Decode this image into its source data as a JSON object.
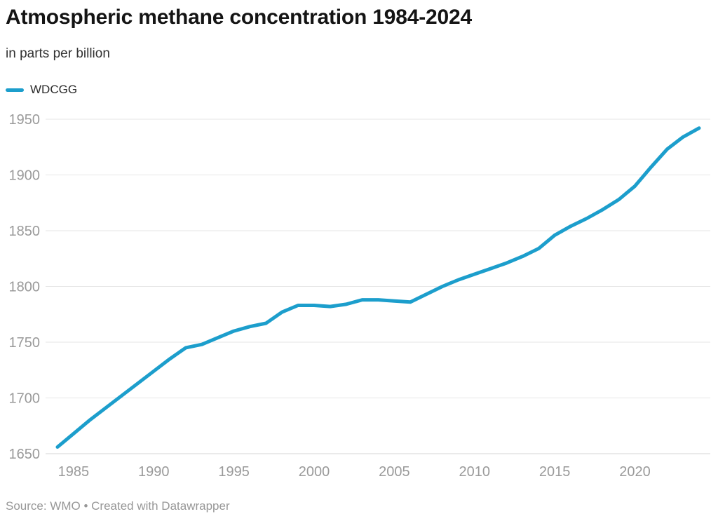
{
  "header": {
    "title": "Atmospheric methane concentration 1984-2024",
    "subtitle": "in parts per billion"
  },
  "legend": {
    "label": "WDCGG"
  },
  "footer": {
    "source": "Source: WMO • Created with Datawrapper"
  },
  "colors": {
    "accent": "#1C9ECC",
    "title_text": "#141414",
    "body_text": "#333333",
    "tick_text": "#9A9A9A",
    "gridline": "#E6E6E6",
    "baseline": "#D5D5D5",
    "footer_text": "#979797"
  },
  "chart_data": {
    "type": "line",
    "title": "Atmospheric methane concentration 1984-2024",
    "subtitle": "in parts per billion",
    "ylabel": "",
    "xlabel": "",
    "unit": "parts per billion",
    "xlim": [
      1984,
      2024
    ],
    "ylim": [
      1650,
      1950
    ],
    "xticks": [
      1985,
      1990,
      1995,
      2000,
      2005,
      2010,
      2015,
      2020
    ],
    "yticks": [
      1650,
      1700,
      1750,
      1800,
      1850,
      1900,
      1950
    ],
    "grid": "horizontal",
    "legend_position": "top-left",
    "series": [
      {
        "name": "WDCGG",
        "x": [
          1984,
          1985,
          1986,
          1987,
          1988,
          1989,
          1990,
          1991,
          1992,
          1993,
          1994,
          1995,
          1996,
          1997,
          1998,
          1999,
          2000,
          2001,
          2002,
          2003,
          2004,
          2005,
          2006,
          2007,
          2008,
          2009,
          2010,
          2011,
          2012,
          2013,
          2014,
          2015,
          2016,
          2017,
          2018,
          2019,
          2020,
          2021,
          2022,
          2023,
          2024
        ],
        "values": [
          1656,
          1668,
          1680,
          1691,
          1702,
          1713,
          1724,
          1735,
          1745,
          1748,
          1754,
          1760,
          1764,
          1767,
          1777,
          1783,
          1783,
          1782,
          1784,
          1788,
          1788,
          1787,
          1786,
          1793,
          1800,
          1806,
          1811,
          1816,
          1821,
          1827,
          1834,
          1846,
          1854,
          1861,
          1869,
          1878,
          1890,
          1907,
          1923,
          1934,
          1942
        ]
      }
    ]
  }
}
